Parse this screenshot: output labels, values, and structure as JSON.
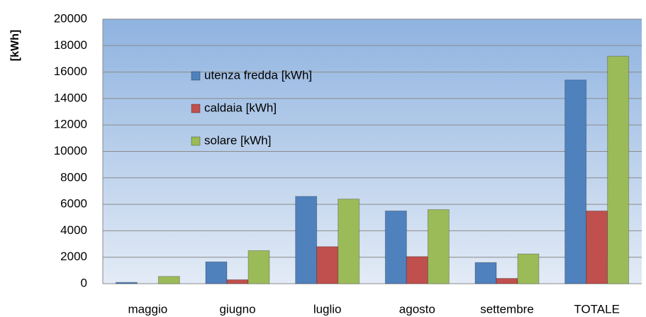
{
  "chart_data": {
    "type": "bar",
    "y_label": "[kWh]",
    "categories": [
      "maggio",
      "giugno",
      "luglio",
      "agosto",
      "settembre",
      "TOTALE"
    ],
    "series": [
      {
        "name": "utenza fredda [kWh]",
        "color": "#4f81bd",
        "values": [
          100,
          1650,
          6600,
          5500,
          1600,
          15400
        ]
      },
      {
        "name": "caldaia [kWh]",
        "color": "#c0504d",
        "values": [
          0,
          300,
          2800,
          2050,
          400,
          5500
        ]
      },
      {
        "name": "solare [kWh]",
        "color": "#9bbb59",
        "values": [
          550,
          2500,
          6400,
          5600,
          2250,
          17200
        ]
      }
    ],
    "ylim": [
      0,
      20000
    ],
    "yticks": [
      0,
      2000,
      4000,
      6000,
      8000,
      10000,
      12000,
      14000,
      16000,
      18000,
      20000
    ],
    "grid": true,
    "legend": "upper left"
  }
}
